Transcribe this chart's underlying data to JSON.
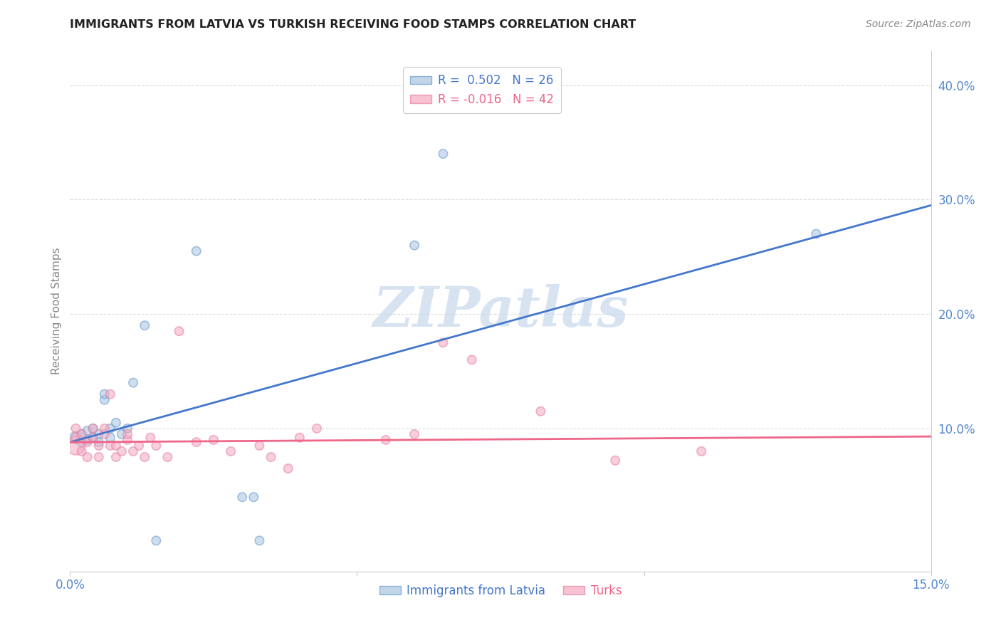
{
  "title": "IMMIGRANTS FROM LATVIA VS TURKISH RECEIVING FOOD STAMPS CORRELATION CHART",
  "source": "Source: ZipAtlas.com",
  "ylabel": "Receiving Food Stamps",
  "xlim": [
    0.0,
    0.15
  ],
  "ylim": [
    -0.025,
    0.43
  ],
  "ytick_positions": [
    0.1,
    0.2,
    0.3,
    0.4
  ],
  "ytick_labels": [
    "10.0%",
    "20.0%",
    "30.0%",
    "40.0%"
  ],
  "xtick_positions": [
    0.0,
    0.05,
    0.1,
    0.15
  ],
  "xtick_labels": [
    "0.0%",
    "",
    "",
    "15.0%"
  ],
  "blue_fill": "#A8C4E0",
  "blue_edge": "#6699CC",
  "pink_fill": "#F4A8C0",
  "pink_edge": "#E87EA0",
  "blue_line_color": "#4477CC",
  "pink_line_color": "#EE6688",
  "tick_label_color": "#5588CC",
  "watermark_text": "ZIPatlas",
  "watermark_color": "#C8D8EC",
  "legend_r1_label": "R =  0.502   N = 26",
  "legend_r2_label": "R = -0.016   N = 42",
  "blue_line_x": [
    0.0,
    0.15
  ],
  "blue_line_y": [
    0.088,
    0.295
  ],
  "pink_line_x": [
    0.0,
    0.15
  ],
  "pink_line_y": [
    0.088,
    0.093
  ],
  "latvia_x": [
    0.001,
    0.002,
    0.002,
    0.003,
    0.003,
    0.004,
    0.004,
    0.005,
    0.005,
    0.006,
    0.006,
    0.007,
    0.007,
    0.008,
    0.009,
    0.01,
    0.011,
    0.013,
    0.015,
    0.022,
    0.03,
    0.032,
    0.033,
    0.06,
    0.065,
    0.13
  ],
  "latvia_y": [
    0.092,
    0.088,
    0.095,
    0.09,
    0.098,
    0.092,
    0.1,
    0.088,
    0.095,
    0.125,
    0.13,
    0.092,
    0.1,
    0.105,
    0.095,
    0.1,
    0.14,
    0.19,
    0.002,
    0.255,
    0.04,
    0.04,
    0.002,
    0.26,
    0.34,
    0.27
  ],
  "latvia_sizes": [
    150,
    80,
    80,
    80,
    80,
    80,
    80,
    80,
    80,
    80,
    80,
    80,
    80,
    80,
    80,
    80,
    80,
    80,
    80,
    80,
    80,
    80,
    80,
    80,
    80,
    80
  ],
  "turks_x": [
    0.001,
    0.001,
    0.001,
    0.002,
    0.002,
    0.003,
    0.003,
    0.004,
    0.004,
    0.005,
    0.005,
    0.006,
    0.006,
    0.007,
    0.007,
    0.008,
    0.008,
    0.009,
    0.01,
    0.01,
    0.011,
    0.012,
    0.013,
    0.014,
    0.015,
    0.017,
    0.019,
    0.022,
    0.025,
    0.028,
    0.033,
    0.035,
    0.038,
    0.04,
    0.043,
    0.055,
    0.06,
    0.065,
    0.07,
    0.082,
    0.095,
    0.11
  ],
  "turks_y": [
    0.085,
    0.092,
    0.1,
    0.08,
    0.095,
    0.088,
    0.075,
    0.092,
    0.1,
    0.085,
    0.075,
    0.095,
    0.1,
    0.13,
    0.085,
    0.075,
    0.085,
    0.08,
    0.09,
    0.095,
    0.08,
    0.085,
    0.075,
    0.092,
    0.085,
    0.075,
    0.185,
    0.088,
    0.09,
    0.08,
    0.085,
    0.075,
    0.065,
    0.092,
    0.1,
    0.09,
    0.095,
    0.175,
    0.16,
    0.115,
    0.072,
    0.08
  ],
  "turks_sizes": [
    350,
    80,
    80,
    80,
    80,
    80,
    80,
    80,
    80,
    80,
    80,
    80,
    80,
    80,
    80,
    80,
    80,
    80,
    80,
    80,
    80,
    80,
    80,
    80,
    80,
    80,
    80,
    80,
    80,
    80,
    80,
    80,
    80,
    80,
    80,
    80,
    80,
    80,
    80,
    80,
    80,
    80
  ],
  "grid_color": "#DDDDDD",
  "spine_color": "#CCCCCC",
  "background_color": "#FFFFFF"
}
